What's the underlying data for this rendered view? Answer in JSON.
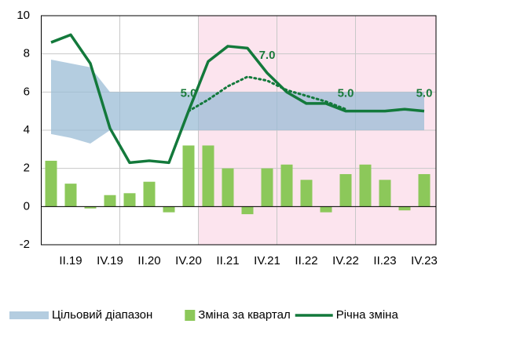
{
  "chart_data": {
    "type": "combo",
    "categories": [
      null,
      "II.19",
      null,
      "IV.19",
      null,
      "II.20",
      null,
      "IV.20",
      null,
      "II.21",
      null,
      "IV.21",
      null,
      "II.22",
      null,
      "IV.22",
      null,
      "II.23",
      null,
      "IV.23"
    ],
    "ylim": [
      -2,
      10
    ],
    "yticks": [
      -2,
      0,
      2,
      4,
      6,
      8,
      10
    ],
    "grid": true,
    "xgrid_every": 4,
    "shaded_region": {
      "from": 8,
      "color": "#fce4ee"
    },
    "legend": "bottom",
    "series": [
      {
        "type": "band",
        "name": "Цільовий діапазон",
        "color": "#9bbcd6",
        "lower": [
          3.8,
          3.6,
          3.3,
          4,
          4,
          4,
          4,
          4,
          4,
          4,
          4,
          4,
          4,
          4,
          4,
          4,
          4,
          4,
          4,
          4
        ],
        "upper": [
          7.7,
          7.5,
          7.3,
          6,
          6,
          6,
          6,
          6,
          6,
          6,
          6,
          6,
          6,
          6,
          6,
          6,
          6,
          6,
          6,
          6
        ]
      },
      {
        "type": "bar",
        "name": "Зміна за квартал",
        "color": "#8cc85a",
        "values": [
          2.4,
          1.2,
          -0.1,
          0.6,
          0.7,
          1.3,
          -0.3,
          3.2,
          3.2,
          2.0,
          -0.4,
          2.0,
          2.2,
          1.4,
          -0.3,
          1.7,
          2.2,
          1.4,
          -0.2,
          1.7
        ]
      },
      {
        "type": "line",
        "name": "Річна зміна",
        "color": "#13793b",
        "values": [
          8.6,
          9.0,
          7.5,
          4.1,
          2.3,
          2.4,
          2.3,
          5.0,
          7.6,
          8.4,
          8.3,
          7.0,
          6.0,
          5.4,
          5.4,
          5.0,
          5.0,
          5.0,
          5.1,
          5.0
        ],
        "value_labels": [
          null,
          null,
          null,
          null,
          null,
          null,
          null,
          "5.0",
          null,
          null,
          null,
          "7.0",
          null,
          null,
          null,
          "5.0",
          null,
          null,
          null,
          "5.0"
        ]
      },
      {
        "type": "line",
        "dotted": true,
        "color": "#13793b",
        "values": [
          null,
          null,
          null,
          null,
          null,
          null,
          null,
          5.0,
          5.6,
          6.3,
          6.8,
          6.6,
          6.1,
          5.8,
          5.5,
          5.1,
          null,
          null,
          null,
          null
        ]
      }
    ]
  }
}
